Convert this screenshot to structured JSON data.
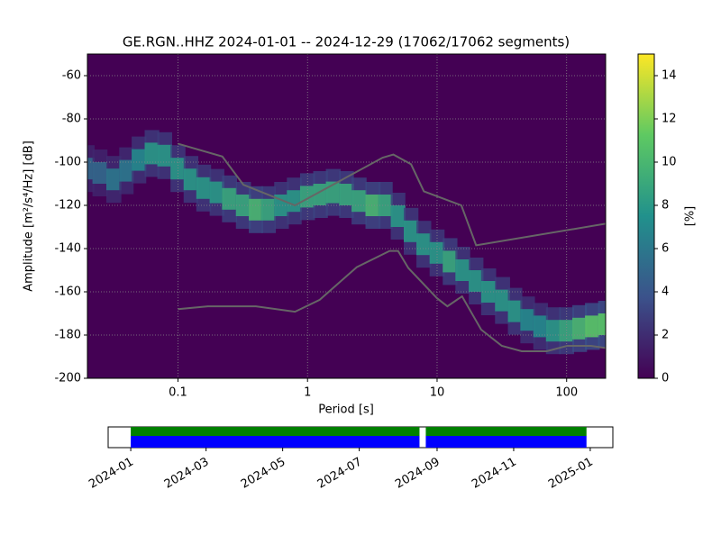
{
  "chart_data": {
    "type": "ppsd",
    "title": "GE.RGN..HHZ   2024-01-01 -- 2024-12-29  (17062/17062 segments)",
    "xlabel": "Period [s]",
    "ylabel": "Amplitude [m²/s⁴/Hz] [dB]",
    "colorbar_label": "[%]",
    "xscale": "log",
    "xlim": [
      0.02,
      200
    ],
    "xticks": [
      0.1,
      1,
      10,
      100
    ],
    "ylim": [
      -200,
      -50
    ],
    "yticks": [
      -60,
      -80,
      -100,
      -120,
      -140,
      -160,
      -180,
      -200
    ],
    "grid": true,
    "clim": [
      0,
      15
    ],
    "cticks": [
      0,
      2,
      4,
      6,
      8,
      10,
      12,
      14
    ],
    "colormap": [
      "#440154",
      "#3b528b",
      "#21918c",
      "#5ec962",
      "#fde725"
    ],
    "density": {
      "x": [
        0.02,
        0.025,
        0.032,
        0.04,
        0.05,
        0.063,
        0.079,
        0.1,
        0.126,
        0.158,
        0.2,
        0.25,
        0.32,
        0.4,
        0.5,
        0.63,
        0.79,
        1,
        1.26,
        1.58,
        2,
        2.5,
        3.2,
        4,
        5,
        6.3,
        7.9,
        10,
        12.6,
        15.8,
        20,
        25,
        32,
        40,
        50,
        63,
        79,
        100,
        126,
        158,
        200
      ],
      "y": [
        -103,
        -105,
        -108,
        -104,
        -99,
        -96,
        -97,
        -103,
        -108,
        -112,
        -114,
        -117,
        -120,
        -122,
        -122,
        -120,
        -118,
        -116,
        -115,
        -114,
        -115,
        -118,
        -120,
        -120,
        -125,
        -132,
        -138,
        -142,
        -146,
        -150,
        -155,
        -160,
        -164,
        -169,
        -173,
        -176,
        -178,
        -178,
        -177,
        -176,
        -175
      ],
      "values": [
        5,
        5,
        6,
        6,
        7,
        8,
        8,
        8,
        8,
        8,
        8,
        9,
        9,
        10,
        9,
        8,
        8,
        9,
        9,
        9,
        9,
        9,
        10,
        9,
        8,
        8,
        8,
        8,
        9,
        8,
        8,
        8,
        8,
        8,
        7,
        7,
        8,
        9,
        10,
        11,
        11
      ]
    },
    "noise_models": [
      {
        "color": "#666666",
        "x": [
          0.1,
          0.22,
          0.32,
          0.8,
          3.8,
          4.6,
          6.3,
          7.9,
          15.4,
          20,
          200
        ],
        "values": [
          -91.5,
          -97.4,
          -110.5,
          -120,
          -97.9,
          -96.5,
          -101,
          -113.5,
          -120,
          -138.5,
          -128.5
        ]
      },
      {
        "color": "#666666",
        "x": [
          0.1,
          0.17,
          0.4,
          0.8,
          1.24,
          2.4,
          4.3,
          5,
          6,
          10,
          12,
          15.6,
          21.9,
          31.6,
          45,
          70,
          101,
          154,
          200
        ],
        "values": [
          -168,
          -166.7,
          -166.7,
          -169.2,
          -163.7,
          -148.6,
          -141.1,
          -141.1,
          -149,
          -163,
          -166.7,
          -162.1,
          -177.5,
          -185,
          -187.5,
          -187.5,
          -185,
          -185,
          -186
        ]
      }
    ],
    "timeline": {
      "xlim": [
        "2023-12-14",
        "2025-01-19"
      ],
      "xticks": [
        {
          "value": "2024-01-01",
          "label": "2024-01"
        },
        {
          "value": "2024-03-01",
          "label": "2024-03"
        },
        {
          "value": "2024-05-01",
          "label": "2024-05"
        },
        {
          "value": "2024-07-01",
          "label": "2024-07"
        },
        {
          "value": "2024-09-01",
          "label": "2024-09"
        },
        {
          "value": "2024-11-01",
          "label": "2024-11"
        },
        {
          "value": "2025-01-01",
          "label": "2025-01"
        }
      ],
      "series": [
        {
          "color": "#008000",
          "segments": [
            [
              "2024-01-01",
              "2024-08-18"
            ],
            [
              "2024-08-23",
              "2024-12-29"
            ]
          ]
        },
        {
          "color": "#0000ff",
          "segments": [
            [
              "2024-01-01",
              "2024-08-18"
            ],
            [
              "2024-08-23",
              "2024-12-29"
            ]
          ]
        }
      ]
    }
  }
}
